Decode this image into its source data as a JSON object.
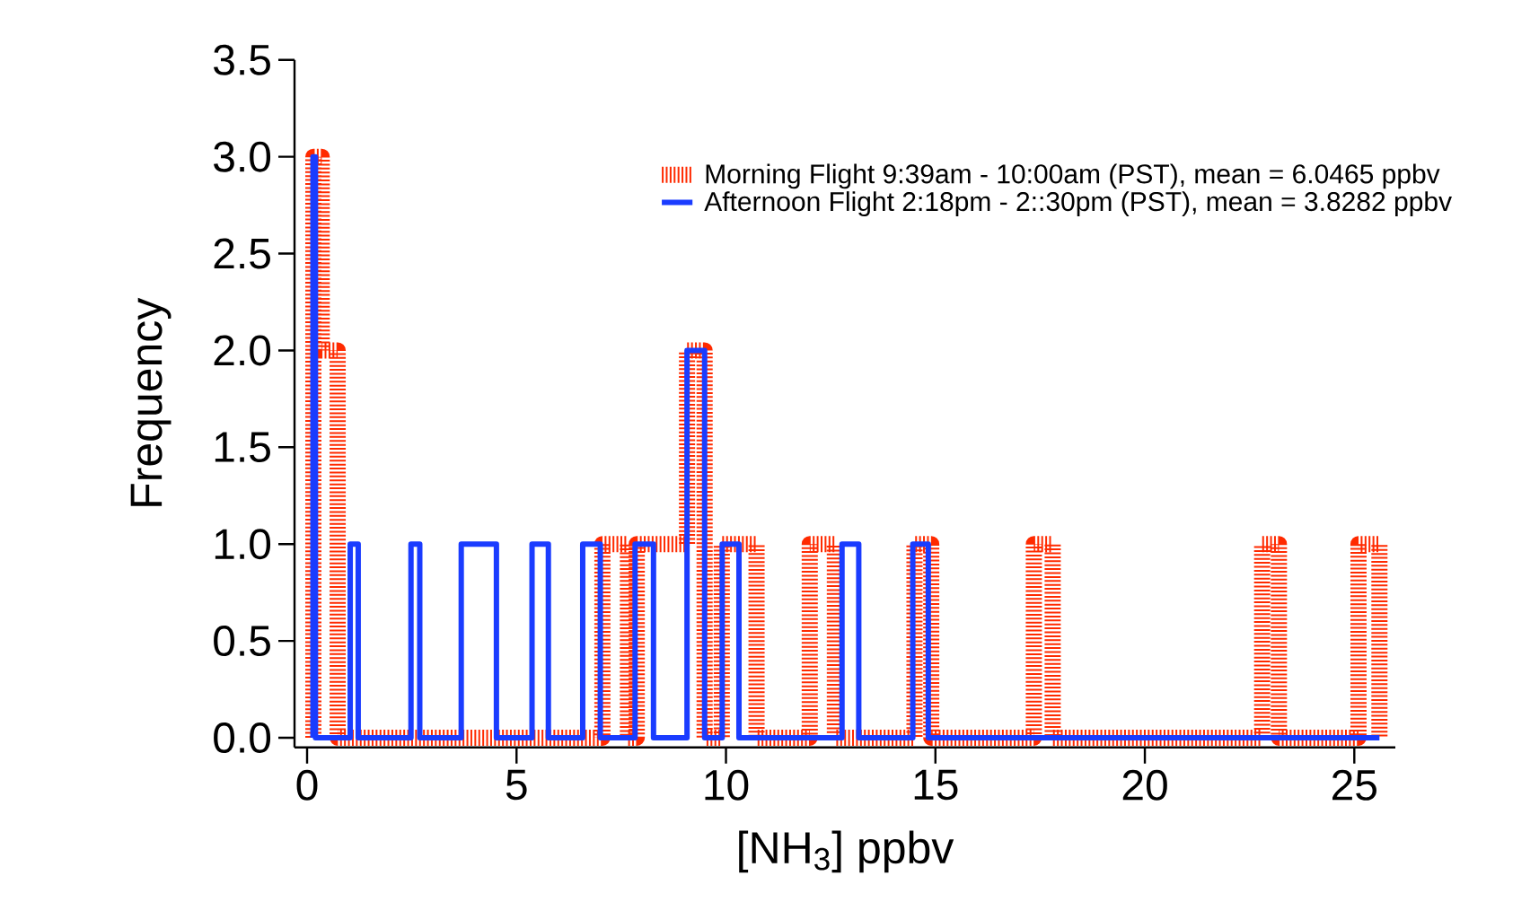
{
  "chart_data": {
    "type": "step",
    "xlabel": "[NH$_{3}$]  ppbv",
    "ylabel": "Frequency",
    "xlim": [
      -0.3,
      25.98
    ],
    "ylim": [
      -0.05,
      3.5
    ],
    "xticks": [
      0,
      5,
      10,
      15,
      20,
      25
    ],
    "yticks": [
      {
        "value": 0,
        "label": "0.0"
      },
      {
        "value": 0.5,
        "label": "0.5"
      },
      {
        "value": 1,
        "label": "1.0"
      },
      {
        "value": 1.5,
        "label": "1.5"
      },
      {
        "value": 2,
        "label": "2.0"
      },
      {
        "value": 2.5,
        "label": "2.5"
      },
      {
        "value": 3,
        "label": "3.0"
      },
      {
        "value": 3.5,
        "label": "3.5"
      }
    ],
    "legend": "top right",
    "series": [
      {
        "name": "Morning Flight 9:39am - 10:00am (PST), mean = 6.0465 ppbv",
        "color": "#ff2a00",
        "line_style": "dotted",
        "x": [
          0.15,
          0.15,
          0.35,
          0.73,
          7.05,
          7.66,
          7.87,
          9.07,
          9.49,
          9.9,
          10.73,
          12.0,
          12.6,
          14.5,
          14.9,
          17.35,
          17.8,
          22.8,
          23.2,
          25.1,
          25.6
        ],
        "values": [
          0,
          3,
          2,
          0,
          1,
          0,
          1,
          2,
          0,
          1,
          0,
          1,
          0,
          1,
          0,
          1,
          0,
          1,
          0,
          1,
          0
        ]
      },
      {
        "name": "Afternoon Flight 2:18pm - 2::30pm (PST), mean = 3.8282 ppbv",
        "color": "#1a3cff",
        "line_style": "solid",
        "x": [
          0.14,
          0.14,
          0.2,
          1.03,
          1.22,
          2.48,
          2.69,
          3.68,
          4.52,
          5.37,
          5.76,
          6.58,
          7.0,
          7.83,
          8.27,
          9.07,
          9.49,
          9.91,
          10.31,
          12.77,
          13.17,
          14.46,
          14.83,
          25.6
        ],
        "values": [
          0,
          3,
          0,
          1,
          0,
          1,
          0,
          1,
          0,
          1,
          0,
          1,
          0,
          1,
          0,
          2,
          0,
          1,
          0,
          1,
          0,
          1,
          0,
          0
        ]
      }
    ]
  }
}
